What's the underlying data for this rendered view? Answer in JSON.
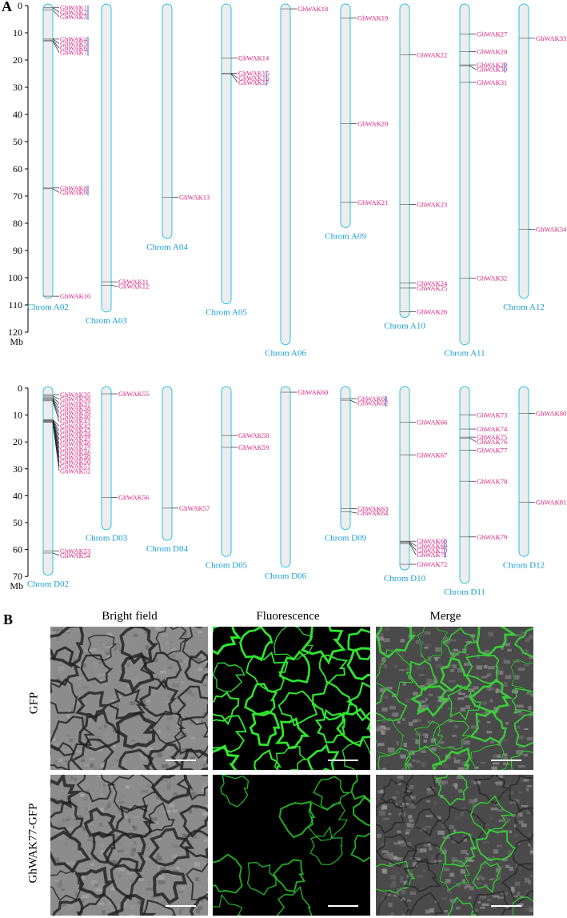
{
  "panel_a": {
    "letter": "A",
    "unit": "Mb",
    "top": {
      "ticks": [
        0,
        10,
        20,
        30,
        40,
        50,
        60,
        70,
        80,
        90,
        100,
        110,
        120
      ],
      "chroms": [
        {
          "name": "Chrom A02",
          "length": 107,
          "genes": [
            {
              "label": "GhWAK1",
              "pos": 0.8,
              "group": [
                0.3,
                0.8,
                1.6
              ]
            },
            {
              "label": "GhWAK2",
              "pos": 0.8
            },
            {
              "label": "GhWAK3",
              "pos": 1.6
            },
            {
              "label": "GhWAK4",
              "pos": 12.3,
              "group": [
                11.8,
                12.3,
                12.8,
                13.0
              ]
            },
            {
              "label": "GhWAK5",
              "pos": 12.3
            },
            {
              "label": "GhWAK6",
              "pos": 12.8
            },
            {
              "label": "GhWAK7",
              "pos": 13.0
            },
            {
              "label": "GhWAK8",
              "pos": 67.0,
              "group": [
                66.7,
                67.3
              ]
            },
            {
              "label": "GhWAK9",
              "pos": 67.3
            },
            {
              "label": "GhWAK10",
              "pos": 106.8
            }
          ]
        },
        {
          "name": "Chrom A03",
          "length": 112,
          "genes": [
            {
              "label": "GhWAK11",
              "pos": 101.5
            },
            {
              "label": "GhWAK12",
              "pos": 102.8
            }
          ]
        },
        {
          "name": "Chrom A04",
          "length": 85,
          "genes": [
            {
              "label": "GhWAK13",
              "pos": 70.5
            }
          ]
        },
        {
          "name": "Chrom A05",
          "length": 109,
          "genes": [
            {
              "label": "GhWAK14",
              "pos": 19.3
            },
            {
              "label": "GhWAK15",
              "pos": 24.9,
              "group": [
                24.6,
                24.9,
                25.1
              ]
            },
            {
              "label": "GhWAK16",
              "pos": 24.9
            },
            {
              "label": "GhWAK17",
              "pos": 25.1
            }
          ]
        },
        {
          "name": "Chrom A06",
          "length": 124,
          "genes": [
            {
              "label": "GhWAK18",
              "pos": 1.2
            }
          ]
        },
        {
          "name": "Chrom A09",
          "length": 81,
          "genes": [
            {
              "label": "GhWAK19",
              "pos": 4.6
            },
            {
              "label": "GhWAK20",
              "pos": 43.4
            },
            {
              "label": "GhWAK21",
              "pos": 72.3
            }
          ]
        },
        {
          "name": "Chrom A10",
          "length": 114,
          "genes": [
            {
              "label": "GhWAK22",
              "pos": 18.1
            },
            {
              "label": "GhWAK23",
              "pos": 73.1
            },
            {
              "label": "GhWAK24",
              "pos": 102.0
            },
            {
              "label": "GhWAK25",
              "pos": 103.8
            },
            {
              "label": "GhWAK26",
              "pos": 112.5
            }
          ]
        },
        {
          "name": "Chrom A11",
          "length": 124,
          "genes": [
            {
              "label": "GhWAK27",
              "pos": 10.5
            },
            {
              "label": "GhWAK28",
              "pos": 16.9
            },
            {
              "label": "GhWAK29",
              "pos": 21.8,
              "group": [
                21.5,
                22.1
              ]
            },
            {
              "label": "GhWAK30",
              "pos": 22.1
            },
            {
              "label": "GhWAK31",
              "pos": 28.2
            },
            {
              "label": "GhWAK32",
              "pos": 100.2
            }
          ]
        },
        {
          "name": "Chrom A12",
          "length": 107,
          "genes": [
            {
              "label": "GhWAK33",
              "pos": 12.0
            },
            {
              "label": "GhWAK34",
              "pos": 82.2
            }
          ]
        }
      ]
    },
    "bottom": {
      "ticks": [
        0,
        10,
        20,
        30,
        40,
        50,
        60,
        70
      ],
      "chroms": [
        {
          "name": "Chrom D02",
          "length": 69,
          "genes": [
            {
              "label": "GhWAK35",
              "pos": 2.4
            },
            {
              "label": "GhWAK36",
              "pos": 2.9
            },
            {
              "label": "GhWAK37",
              "pos": 3.3
            },
            {
              "label": "GhWAK38",
              "pos": 3.7
            },
            {
              "label": "GhWAK39",
              "pos": 4.1
            },
            {
              "label": "GhWAK40",
              "pos": 4.4
            },
            {
              "label": "GhWAK41",
              "pos": 4.7
            },
            {
              "label": "GhWAK42",
              "pos": 11.7
            },
            {
              "label": "GhWAK43",
              "pos": 11.8
            },
            {
              "label": "GhWAK44",
              "pos": 11.9
            },
            {
              "label": "GhWAK45",
              "pos": 12.0
            },
            {
              "label": "GhWAK46",
              "pos": 12.1
            },
            {
              "label": "GhWAK47",
              "pos": 12.2
            },
            {
              "label": "GhWAK48",
              "pos": 12.3
            },
            {
              "label": "GhWAK49",
              "pos": 12.4
            },
            {
              "label": "GhWAK50",
              "pos": 12.5
            },
            {
              "label": "GhWAK51",
              "pos": 12.6
            },
            {
              "label": "GhWAK52",
              "pos": 12.7
            },
            {
              "label": "GhWAK53",
              "pos": 60.5
            },
            {
              "label": "GhWAK54",
              "pos": 61.3
            }
          ]
        },
        {
          "name": "Chrom D03",
          "length": 52,
          "genes": [
            {
              "label": "GhWAK55",
              "pos": 2.1
            },
            {
              "label": "GhWAK56",
              "pos": 40.6
            }
          ]
        },
        {
          "name": "Chrom D04",
          "length": 56,
          "genes": [
            {
              "label": "GhWAK57",
              "pos": 44.6
            }
          ]
        },
        {
          "name": "Chrom D05",
          "length": 62,
          "genes": [
            {
              "label": "GhWAK58",
              "pos": 17.6
            },
            {
              "label": "GhWAK59",
              "pos": 22.0
            }
          ]
        },
        {
          "name": "Chrom D06",
          "length": 66,
          "genes": [
            {
              "label": "GhWAK60",
              "pos": 1.5
            }
          ]
        },
        {
          "name": "Chrom D09",
          "length": 52,
          "genes": [
            {
              "label": "GhWAK61",
              "pos": 3.9,
              "group": [
                3.6,
                4.5
              ]
            },
            {
              "label": "GhWAK62",
              "pos": 4.5
            },
            {
              "label": "GhWAK63",
              "pos": 44.8
            },
            {
              "label": "GhWAK64",
              "pos": 46.0
            }
          ]
        },
        {
          "name": "Chrom D10",
          "length": 67,
          "genes": [
            {
              "label": "GhWAK66",
              "pos": 12.7
            },
            {
              "label": "GhWAK67",
              "pos": 24.8
            },
            {
              "label": "GhWAK68",
              "pos": 56.9,
              "group": [
                56.7,
                57.1,
                57.4,
                57.8
              ]
            },
            {
              "label": "GhWAK69",
              "pos": 57.1
            },
            {
              "label": "GhWAK70",
              "pos": 57.4
            },
            {
              "label": "GhWAK71",
              "pos": 57.8
            },
            {
              "label": "GhWAK72",
              "pos": 65.5
            }
          ]
        },
        {
          "name": "Chrom D11",
          "length": 72,
          "genes": [
            {
              "label": "GhWAK73",
              "pos": 9.9
            },
            {
              "label": "GhWAK74",
              "pos": 15.2
            },
            {
              "label": "GhWAK75",
              "pos": 18.2
            },
            {
              "label": "GhWAK76",
              "pos": 18.6
            },
            {
              "label": "GhWAK77",
              "pos": 23.1
            },
            {
              "label": "GhWAK78",
              "pos": 34.6
            },
            {
              "label": "GhWAK79",
              "pos": 55.3
            }
          ]
        },
        {
          "name": "Chrom D12",
          "length": 62,
          "genes": [
            {
              "label": "GhWAK80",
              "pos": 9.4
            },
            {
              "label": "GhWAK81",
              "pos": 42.4
            }
          ]
        }
      ]
    },
    "colors": {
      "chrom_stroke": "#29c4e6",
      "chrom_fill": "#ededed",
      "gene_label": "#e0207c",
      "chrom_name": "#1aa0d8",
      "bracket": "#2a6fd6",
      "axis": "#000000"
    }
  },
  "panel_b": {
    "letter": "B",
    "column_titles": [
      "Bright field",
      "Fluorescence",
      "Merge"
    ],
    "row_labels": [
      "GFP",
      "GhWAK77-GFP"
    ],
    "colors": {
      "gfp": "#2ee62e"
    }
  }
}
